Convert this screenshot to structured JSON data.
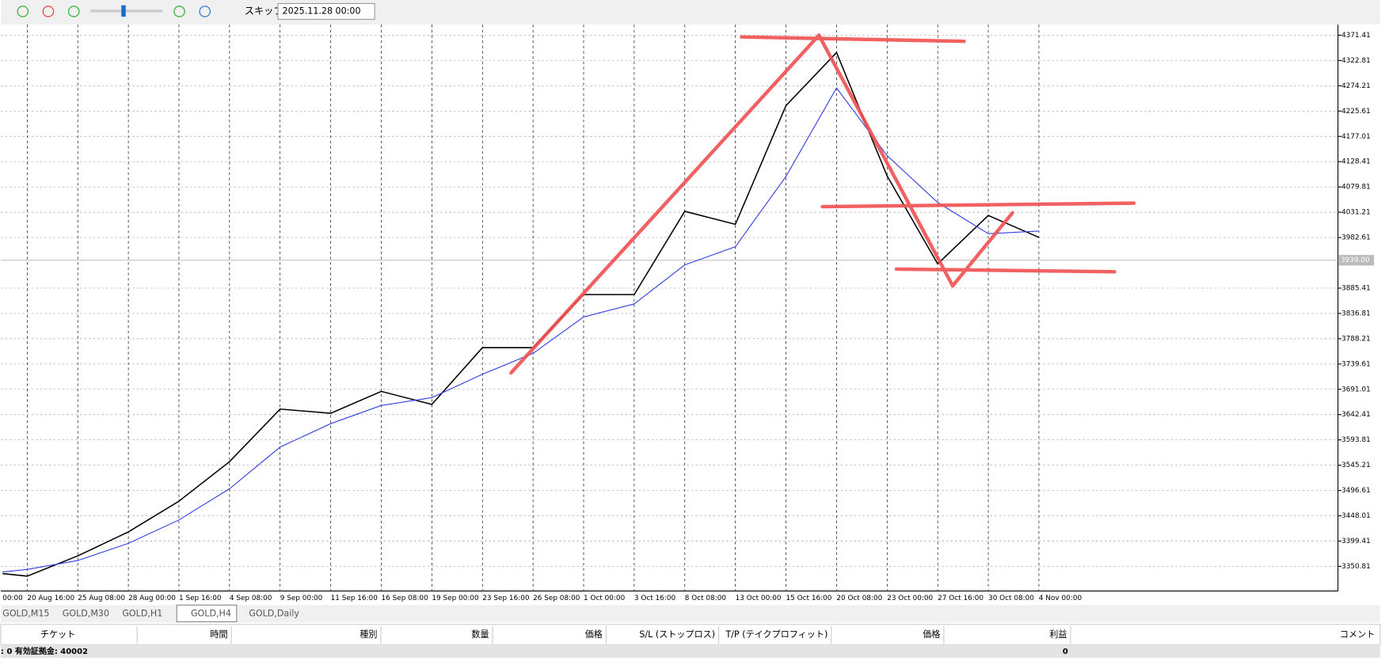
{
  "toolbar": {
    "skip": "スキップ",
    "date": "2025.11.28 00:00"
  },
  "chart_data": {
    "type": "line",
    "categories": [
      "00:00",
      "20 Aug 16:00",
      "25 Aug 08:00",
      "28 Aug 00:00",
      "1 Sep 16:00",
      "4 Sep 08:00",
      "9 Sep 00:00",
      "11 Sep 16:00",
      "16 Sep 08:00",
      "19 Sep 00:00",
      "23 Sep 16:00",
      "26 Sep 08:00",
      "1 Oct 00:00",
      "3 Oct 16:00",
      "8 Oct 08:00",
      "13 Oct 00:00",
      "15 Oct 16:00",
      "20 Oct 08:00",
      "23 Oct 00:00",
      "27 Oct 16:00",
      "30 Oct 08:00",
      "4 Nov 00:00"
    ],
    "values": [
      3337,
      3332,
      3371,
      3417,
      3476,
      3552,
      3653,
      3645,
      3687,
      3662,
      3771,
      3771,
      3873,
      3873,
      4033,
      4008,
      4236,
      4338,
      4101,
      3932,
      4025,
      3983
    ],
    "ma": [
      3340,
      3345,
      3362,
      3395,
      3440,
      3500,
      3580,
      3625,
      3660,
      3675,
      3720,
      3760,
      3830,
      3855,
      3930,
      3965,
      4100,
      4270,
      4140,
      4050,
      3990,
      3995
    ],
    "color": "#000000",
    "ma_color": "#3040e0",
    "ylim": [
      3303.5,
      4391.7
    ],
    "yticks": [
      4371.41,
      4322.81,
      4274.21,
      4225.61,
      4177.01,
      4128.41,
      4079.81,
      4031.21,
      3982.61,
      3885.41,
      3836.81,
      3788.21,
      3739.61,
      3691.01,
      3642.41,
      3593.81,
      3545.21,
      3496.61,
      3448.01,
      3399.41,
      3350.81
    ],
    "current_price": {
      "value": 3939,
      "label": "3939.00"
    },
    "grid": true
  },
  "tabs": [
    "GOLD,M15",
    "GOLD,M30",
    "GOLD,H1",
    "GOLD,H4",
    "GOLD,Daily"
  ],
  "table": {
    "headers": [
      "チケット",
      "時間",
      "種別",
      "数量",
      "価格",
      "S/L (ストップロス)",
      "T/P (テイクプロフィット)",
      "価格",
      "利益",
      "コメント"
    ],
    "status": ": 0  有効証拠金: 40002",
    "profit": "0"
  }
}
